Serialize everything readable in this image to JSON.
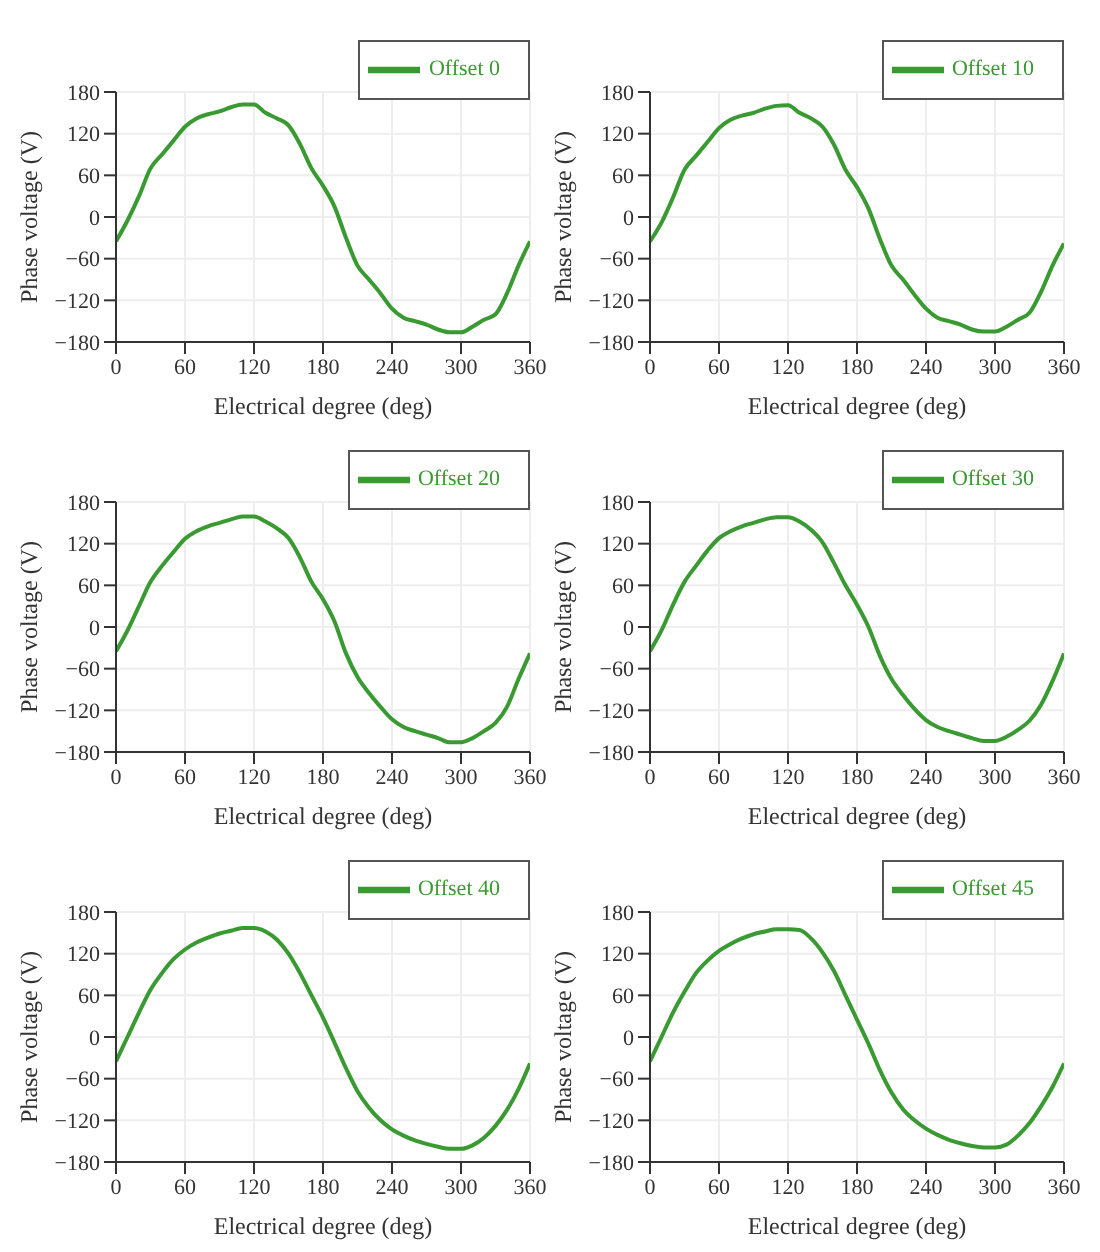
{
  "chart_data": [
    {
      "type": "line",
      "xlabel": "Electrical degree (deg)",
      "ylabel": "Phase voltage (V)",
      "xlim": [
        0,
        360
      ],
      "xticks": [
        0,
        60,
        120,
        180,
        240,
        300,
        360
      ],
      "ylim": [
        -180,
        180
      ],
      "yticks": [
        -180,
        -120,
        -60,
        0,
        60,
        120,
        180
      ],
      "grid": true,
      "legend": "top right",
      "line_style": "solid",
      "marker": "none",
      "x": [
        0,
        10,
        20,
        30,
        40,
        50,
        60,
        70,
        80,
        90,
        100,
        110,
        120,
        130,
        140,
        150,
        160,
        170,
        180,
        190,
        200,
        210,
        220,
        230,
        240,
        250,
        260,
        270,
        280,
        290,
        300,
        310,
        320,
        330,
        340,
        350,
        360
      ],
      "series": [
        {
          "name": "Offset 0",
          "color": "#3a9a32",
          "values": [
            -35,
            -5,
            30,
            70,
            90,
            110,
            130,
            142,
            148,
            152,
            158,
            162,
            162,
            150,
            142,
            132,
            105,
            70,
            45,
            15,
            -30,
            -70,
            -90,
            -110,
            -132,
            -145,
            -150,
            -155,
            -162,
            -166,
            -166,
            -158,
            -148,
            -140,
            -110,
            -70,
            -35
          ]
        }
      ]
    },
    {
      "type": "line",
      "xlabel": "Electrical degree (deg)",
      "ylabel": "Phase voltage (V)",
      "xlim": [
        0,
        360
      ],
      "xticks": [
        0,
        60,
        120,
        180,
        240,
        300,
        360
      ],
      "ylim": [
        -180,
        180
      ],
      "yticks": [
        -180,
        -120,
        -60,
        0,
        60,
        120,
        180
      ],
      "grid": true,
      "legend": "top right",
      "line_style": "solid",
      "marker": "none",
      "x": [
        0,
        10,
        20,
        30,
        40,
        50,
        60,
        70,
        80,
        90,
        100,
        110,
        120,
        130,
        140,
        150,
        160,
        170,
        180,
        190,
        200,
        210,
        220,
        230,
        240,
        250,
        260,
        270,
        280,
        290,
        300,
        310,
        320,
        330,
        340,
        350,
        360
      ],
      "series": [
        {
          "name": "Offset 10",
          "color": "#3a9a32",
          "values": [
            -35,
            -8,
            28,
            68,
            88,
            108,
            128,
            140,
            146,
            150,
            156,
            160,
            161,
            150,
            142,
            130,
            104,
            68,
            43,
            12,
            -32,
            -70,
            -90,
            -112,
            -132,
            -145,
            -150,
            -155,
            -162,
            -165,
            -165,
            -158,
            -148,
            -138,
            -108,
            -70,
            -38
          ]
        }
      ]
    },
    {
      "type": "line",
      "xlabel": "Electrical degree (deg)",
      "ylabel": "Phase voltage (V)",
      "xlim": [
        0,
        360
      ],
      "xticks": [
        0,
        60,
        120,
        180,
        240,
        300,
        360
      ],
      "ylim": [
        -180,
        180
      ],
      "yticks": [
        -180,
        -120,
        -60,
        0,
        60,
        120,
        180
      ],
      "grid": true,
      "legend": "top right",
      "line_style": "solid",
      "marker": "none",
      "x": [
        0,
        10,
        20,
        30,
        40,
        50,
        60,
        70,
        80,
        90,
        100,
        110,
        120,
        130,
        140,
        150,
        160,
        170,
        180,
        190,
        200,
        210,
        220,
        230,
        240,
        250,
        260,
        270,
        280,
        290,
        300,
        310,
        320,
        330,
        340,
        350,
        360
      ],
      "series": [
        {
          "name": "Offset 20",
          "color": "#3a9a32",
          "values": [
            -35,
            -5,
            30,
            65,
            88,
            108,
            127,
            138,
            145,
            150,
            155,
            159,
            159,
            152,
            142,
            128,
            100,
            65,
            40,
            8,
            -38,
            -72,
            -95,
            -115,
            -133,
            -144,
            -150,
            -155,
            -160,
            -166,
            -166,
            -160,
            -150,
            -138,
            -115,
            -75,
            -38
          ]
        }
      ]
    },
    {
      "type": "line",
      "xlabel": "Electrical degree (deg)",
      "ylabel": "Phase voltage (V)",
      "xlim": [
        0,
        360
      ],
      "xticks": [
        0,
        60,
        120,
        180,
        240,
        300,
        360
      ],
      "ylim": [
        -180,
        180
      ],
      "yticks": [
        -180,
        -120,
        -60,
        0,
        60,
        120,
        180
      ],
      "grid": true,
      "legend": "top right",
      "line_style": "solid",
      "marker": "none",
      "x": [
        0,
        10,
        20,
        30,
        40,
        50,
        60,
        70,
        80,
        90,
        100,
        110,
        120,
        130,
        140,
        150,
        160,
        170,
        180,
        190,
        200,
        210,
        220,
        230,
        240,
        250,
        260,
        270,
        280,
        290,
        300,
        310,
        320,
        330,
        340,
        350,
        360
      ],
      "series": [
        {
          "name": "Offset 30",
          "color": "#3a9a32",
          "values": [
            -35,
            -5,
            32,
            65,
            88,
            110,
            128,
            138,
            145,
            150,
            155,
            158,
            158,
            152,
            140,
            122,
            92,
            60,
            32,
            0,
            -42,
            -75,
            -98,
            -118,
            -134,
            -144,
            -150,
            -155,
            -160,
            -164,
            -164,
            -158,
            -148,
            -135,
            -112,
            -78,
            -38
          ]
        }
      ]
    },
    {
      "type": "line",
      "xlabel": "Electrical degree (deg)",
      "ylabel": "Phase voltage (V)",
      "xlim": [
        0,
        360
      ],
      "xticks": [
        0,
        60,
        120,
        180,
        240,
        300,
        360
      ],
      "ylim": [
        -180,
        180
      ],
      "yticks": [
        -180,
        -120,
        -60,
        0,
        60,
        120,
        180
      ],
      "grid": true,
      "legend": "top right",
      "line_style": "solid",
      "marker": "none",
      "x": [
        0,
        10,
        20,
        30,
        40,
        50,
        60,
        70,
        80,
        90,
        100,
        110,
        120,
        130,
        140,
        150,
        160,
        170,
        180,
        190,
        200,
        210,
        220,
        230,
        240,
        250,
        260,
        270,
        280,
        290,
        300,
        310,
        320,
        330,
        340,
        350,
        360
      ],
      "series": [
        {
          "name": "Offset 40",
          "color": "#3a9a32",
          "values": [
            -35,
            0,
            35,
            68,
            92,
            112,
            126,
            136,
            143,
            149,
            153,
            157,
            157,
            152,
            140,
            120,
            92,
            60,
            28,
            -8,
            -45,
            -78,
            -102,
            -120,
            -133,
            -142,
            -149,
            -154,
            -158,
            -161,
            -161,
            -156,
            -145,
            -128,
            -105,
            -75,
            -38
          ]
        }
      ]
    },
    {
      "type": "line",
      "xlabel": "Electrical degree (deg)",
      "ylabel": "Phase voltage (V)",
      "xlim": [
        0,
        360
      ],
      "xticks": [
        0,
        60,
        120,
        180,
        240,
        300,
        360
      ],
      "ylim": [
        -180,
        180
      ],
      "yticks": [
        -180,
        -120,
        -60,
        0,
        60,
        120,
        180
      ],
      "grid": true,
      "legend": "top right",
      "line_style": "solid",
      "marker": "none",
      "x": [
        0,
        10,
        20,
        30,
        40,
        50,
        60,
        70,
        80,
        90,
        100,
        110,
        120,
        130,
        140,
        150,
        160,
        170,
        180,
        190,
        200,
        210,
        220,
        230,
        240,
        250,
        260,
        270,
        280,
        290,
        300,
        310,
        320,
        330,
        340,
        350,
        360
      ],
      "series": [
        {
          "name": "Offset 45",
          "color": "#3a9a32",
          "values": [
            -35,
            0,
            35,
            65,
            92,
            110,
            124,
            134,
            142,
            148,
            152,
            155,
            155,
            154,
            142,
            122,
            95,
            60,
            25,
            -10,
            -48,
            -80,
            -104,
            -120,
            -132,
            -141,
            -148,
            -153,
            -157,
            -159,
            -159,
            -155,
            -142,
            -124,
            -100,
            -72,
            -38
          ]
        }
      ]
    }
  ]
}
